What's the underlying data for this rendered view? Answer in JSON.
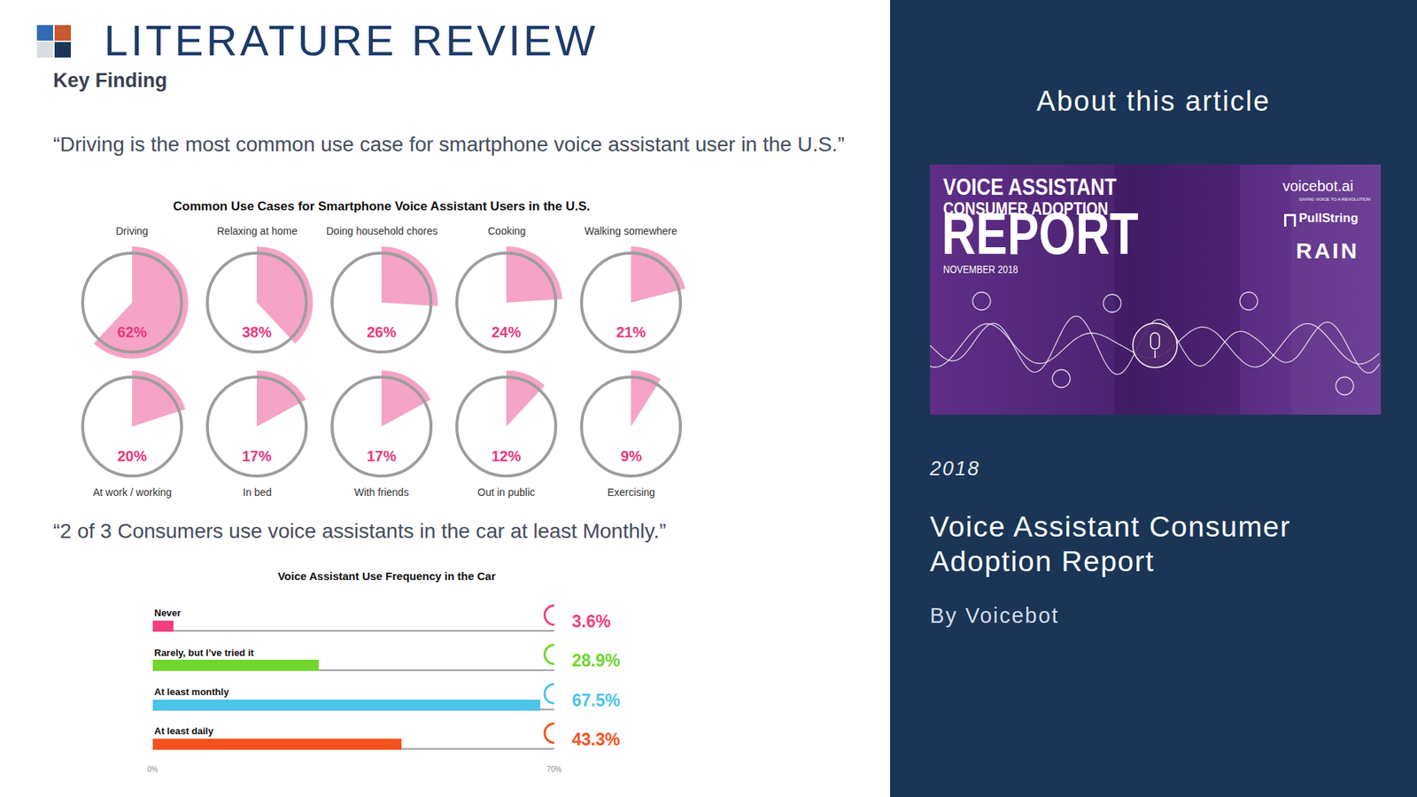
{
  "header": {
    "title": "LITERATURE REVIEW",
    "subtitle": "Key Finding"
  },
  "quotes": [
    "“Driving is the most common use case for smartphone voice assistant user in the U.S.”",
    "“2 of 3 Consumers use voice assistants in the car at least Monthly.”"
  ],
  "chart_data": [
    {
      "type": "pie",
      "title": "Common Use Cases for Smartphone Voice Assistant Users in the U.S.",
      "categories": [
        "Driving",
        "Relaxing at home",
        "Doing household chores",
        "Cooking",
        "Walking somewhere",
        "At work / working",
        "In bed",
        "With friends",
        "Out in public",
        "Exercising"
      ],
      "values": [
        62,
        38,
        26,
        24,
        21,
        20,
        17,
        17,
        12,
        9
      ],
      "value_labels": [
        "62%",
        "38%",
        "26%",
        "24%",
        "21%",
        "20%",
        "17%",
        "17%",
        "12%",
        "9%"
      ],
      "color": "#f5a3c6",
      "ylim": [
        0,
        100
      ],
      "data_labels": true
    },
    {
      "type": "bar",
      "title": "Voice Assistant Use Frequency in the Car",
      "orientation": "horizontal",
      "categories": [
        "Never",
        "Rarely, but I’ve tried it",
        "At least monthly",
        "At least daily"
      ],
      "values": [
        3.6,
        28.9,
        67.5,
        43.3
      ],
      "value_labels": [
        "3.6%",
        "28.9%",
        "67.5%",
        "43.3%"
      ],
      "colors": [
        "#ef3f7f",
        "#6fd62b",
        "#4cc3e8",
        "#f4511e"
      ],
      "xlim": [
        0,
        70
      ],
      "xticks": [
        {
          "value": 0,
          "label": "0%"
        },
        {
          "value": 70,
          "label": "70%"
        }
      ],
      "data_labels": true,
      "tick_labels": "x"
    }
  ],
  "sidebar": {
    "heading": "About this article",
    "cover": {
      "title_lines": [
        "VOICE ASSISTANT",
        "CONSUMER ADOPTION",
        "REPORT"
      ],
      "date": "NOVEMBER 2018",
      "logos": [
        "voicebot.ai",
        "PullString",
        "RAIN"
      ],
      "tagline": "GIVING VOICE TO A REVOLUTION"
    },
    "year": "2018",
    "article_title": "Voice Assistant Consumer Adoption Report",
    "author": "By Voicebot"
  }
}
